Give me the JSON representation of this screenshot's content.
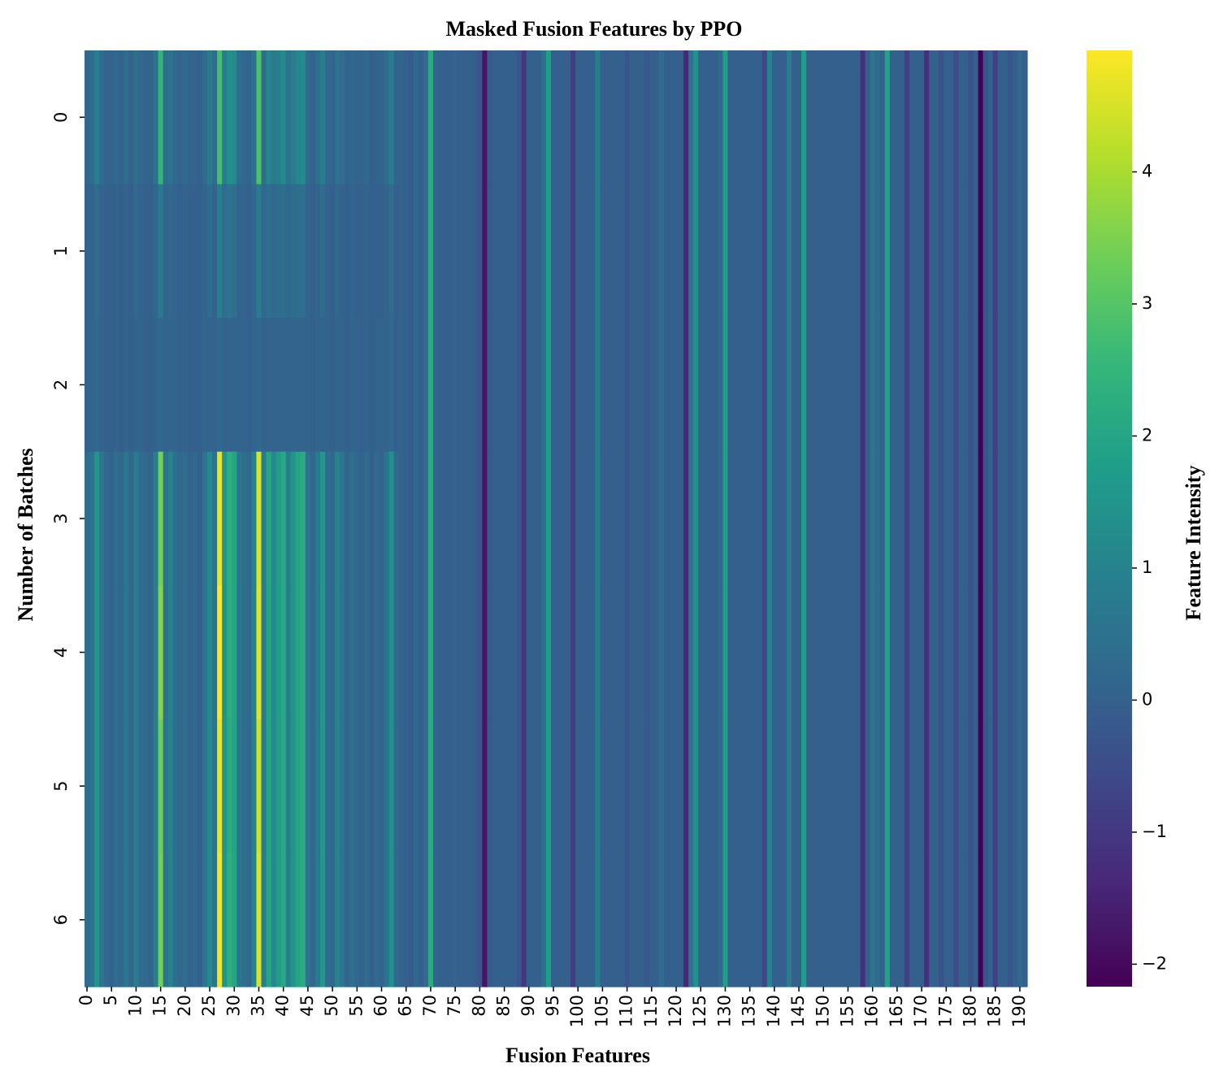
{
  "chart_data": {
    "type": "heatmap",
    "title": "Masked Fusion Features by PPO",
    "x_label": "Fusion Features",
    "y_label": "Number of Batches",
    "colorbar_label": "Feature Intensity",
    "colormap": "viridis",
    "clim": [
      -2.17,
      4.92
    ],
    "cticks": [
      {
        "value": -2,
        "label": "−2"
      },
      {
        "value": -1,
        "label": "−1"
      },
      0,
      1,
      2,
      3,
      4
    ],
    "xticks": [
      0,
      5,
      10,
      15,
      20,
      25,
      30,
      35,
      40,
      45,
      50,
      55,
      60,
      65,
      70,
      75,
      80,
      85,
      90,
      95,
      100,
      105,
      110,
      115,
      120,
      125,
      130,
      135,
      140,
      145,
      150,
      155,
      160,
      165,
      170,
      175,
      180,
      185,
      190
    ],
    "yticks": [
      0,
      1,
      2,
      3,
      4,
      5,
      6
    ],
    "z": [
      [
        0.2,
        0.3,
        0.9,
        0.3,
        0.1,
        0.1,
        0.2,
        0.1,
        0.3,
        0.1,
        0.4,
        0.2,
        0.1,
        0.1,
        0.5,
        2.5,
        0.3,
        0.6,
        0.2,
        0.1,
        0.2,
        0.1,
        0.1,
        0,
        0.3,
        0.7,
        0.3,
        2.8,
        0.8,
        1.4,
        1.2,
        0.3,
        0.2,
        0.1,
        0.5,
        2.9,
        0.4,
        1.1,
        0.7,
        0.9,
        1.2,
        0.5,
        0.8,
        1.1,
        1.2,
        0.3,
        0.1,
        0.4,
        0.9,
        0.2,
        0.1,
        0.5,
        0.3,
        0.1,
        0.2,
        0.1,
        0.1,
        0.2,
        0,
        0.1,
        0.1,
        0.3,
        0.8,
        0.1,
        0.1,
        0,
        -0.1,
        0.2,
        0,
        0.3,
        2.2,
        0.1,
        0,
        0,
        0,
        0.1,
        0,
        0,
        0,
        -0.1,
        -0.3,
        -1.8,
        -0.2,
        0,
        0,
        0,
        0,
        0,
        -0.3,
        -1,
        0,
        0,
        0,
        0.4,
        1.8,
        0,
        0,
        0,
        0,
        -0.9,
        0,
        0,
        0,
        0,
        0.9,
        0,
        0,
        0,
        0,
        0,
        -0.3,
        0,
        0,
        0,
        -0.2,
        0,
        0,
        0.3,
        0,
        0,
        0,
        0,
        -1.4,
        0.5,
        1.4,
        0,
        0,
        0,
        0,
        0.2,
        1.8,
        0,
        0,
        0,
        0,
        0,
        0,
        0,
        -0.7,
        1,
        0,
        0,
        0,
        0.8,
        0,
        0,
        1.8,
        0,
        0,
        0,
        0,
        0,
        0,
        0,
        0,
        0,
        0,
        0,
        -1.2,
        0,
        0.6,
        0.3,
        0,
        1.9,
        0,
        0,
        0,
        -0.8,
        0,
        0,
        0,
        -1.2,
        0,
        0,
        -0.4,
        0,
        0,
        -0.5,
        0,
        0,
        -0.4,
        0,
        -2.17,
        -0.3,
        0,
        -0.8,
        0,
        0,
        -0.3,
        0,
        0.2,
        0
      ],
      [
        0.1,
        0.1,
        0.3,
        0.1,
        0,
        0,
        0.1,
        0,
        0.1,
        0,
        0.2,
        0.1,
        0,
        0,
        0.2,
        0.7,
        0.1,
        0.2,
        0.1,
        0,
        0.1,
        0,
        0,
        0,
        0.1,
        0.3,
        0.1,
        0.9,
        0.3,
        0.5,
        0.4,
        0.1,
        0.1,
        0,
        0.2,
        0.8,
        0.2,
        0.4,
        0.2,
        0.3,
        0.4,
        0.2,
        0.3,
        0.4,
        0.4,
        0.1,
        0,
        0.1,
        0.3,
        0.1,
        0,
        0.2,
        0.1,
        0,
        0.1,
        0,
        0,
        0.1,
        0,
        0,
        0,
        0.1,
        0.3,
        0,
        0.1,
        0,
        -0.1,
        0.2,
        0,
        0.3,
        2.2,
        0.1,
        0,
        0,
        0,
        0.1,
        0,
        0,
        0,
        -0.1,
        -0.3,
        -1.8,
        -0.2,
        0,
        0,
        0,
        0,
        0,
        -0.3,
        -1,
        0,
        0,
        0,
        0.4,
        1.8,
        0,
        0,
        0,
        0,
        -0.9,
        0,
        0,
        0,
        0,
        0.9,
        0,
        0,
        0,
        0,
        0,
        -0.3,
        0,
        0,
        0,
        -0.2,
        0,
        0,
        0.3,
        0,
        0,
        0,
        0,
        -1.4,
        0.5,
        1.4,
        0,
        0,
        0,
        0,
        0.2,
        1.8,
        0,
        0,
        0,
        0,
        0,
        0,
        0,
        -0.7,
        1,
        0,
        0,
        0,
        0.8,
        0,
        0,
        1.8,
        0,
        0,
        0,
        0,
        0,
        0,
        0,
        0,
        0,
        0,
        0,
        -1.2,
        0,
        0.6,
        0.3,
        0,
        1.9,
        0,
        0,
        0,
        -0.8,
        0,
        0,
        0,
        -1.2,
        0,
        0,
        -0.4,
        0,
        0,
        -0.5,
        0,
        0,
        -0.4,
        0,
        -2.17,
        -0.3,
        0,
        -0.8,
        0,
        0,
        -0.3,
        0,
        0.2,
        0
      ],
      [
        0.1,
        0.1,
        0.2,
        0.1,
        0,
        0,
        0.1,
        0,
        0.1,
        0,
        0.1,
        0.1,
        0,
        0,
        0.1,
        0.2,
        0.1,
        0.1,
        0.1,
        0,
        0.1,
        0,
        0,
        0,
        0.1,
        0.1,
        0.1,
        0.2,
        0.1,
        0.1,
        0.1,
        0.1,
        0.1,
        0,
        0.1,
        0.2,
        0.1,
        0.1,
        0.1,
        0.1,
        0.1,
        0.1,
        0.1,
        0.1,
        0.1,
        0.1,
        0,
        0.1,
        0.1,
        0.1,
        0,
        0.1,
        0.1,
        0,
        0.1,
        0.1,
        0,
        0.1,
        0,
        0.1,
        0.1,
        0.1,
        0.2,
        0,
        0.1,
        0,
        -0.1,
        0.2,
        0,
        0.3,
        2.2,
        0.1,
        0,
        0,
        0,
        0.1,
        0,
        0,
        0,
        -0.1,
        -0.3,
        -1.8,
        -0.2,
        0,
        0,
        0,
        0,
        0,
        -0.3,
        -1,
        0,
        0,
        0,
        0.4,
        1.8,
        0,
        0,
        0,
        0,
        -0.9,
        0,
        0,
        0,
        0,
        0.9,
        0,
        0,
        0,
        0,
        0,
        -0.3,
        0,
        0,
        0,
        -0.2,
        0,
        0,
        0.3,
        0,
        0,
        0,
        0,
        -1.4,
        0.5,
        1.4,
        0,
        0,
        0,
        0,
        0.2,
        1.8,
        0,
        0,
        0,
        0,
        0,
        0,
        0,
        -0.7,
        1,
        0,
        0,
        0,
        0.8,
        0,
        0,
        1.8,
        0,
        0,
        0,
        0,
        0,
        0,
        0,
        0,
        0,
        0,
        0,
        -1.2,
        0,
        0.6,
        0.3,
        0,
        1.9,
        0,
        0,
        0,
        -0.8,
        0,
        0,
        0,
        -1.2,
        0,
        0,
        -0.4,
        0,
        0,
        -0.5,
        0,
        0,
        -0.4,
        0,
        -2.17,
        -0.3,
        0,
        -0.8,
        0,
        0,
        -0.3,
        0,
        0.2,
        0
      ],
      [
        0.3,
        0.5,
        1.5,
        0.6,
        0.2,
        0.1,
        0.3,
        0.2,
        0.6,
        0.2,
        0.8,
        0.3,
        0.2,
        0.1,
        0.9,
        3.4,
        0.5,
        1,
        0.4,
        0.2,
        0.3,
        0.1,
        0.2,
        0,
        0.6,
        1.2,
        0.5,
        4.7,
        1.5,
        2.3,
        2,
        0.6,
        0.4,
        0.2,
        1,
        4.5,
        0.8,
        2,
        1.2,
        1.7,
        2.1,
        0.9,
        1.5,
        2,
        2.2,
        0.5,
        0.2,
        0.7,
        1.6,
        0.3,
        0.2,
        1,
        0.6,
        0.1,
        0.4,
        0.2,
        0.1,
        0.3,
        0,
        0.2,
        0.1,
        0.5,
        1.4,
        0.2,
        0.1,
        0,
        -0.1,
        0.2,
        0,
        0.3,
        2.2,
        0.1,
        0,
        0,
        0,
        0.1,
        0,
        0,
        0,
        -0.1,
        -0.3,
        -1.8,
        -0.2,
        0,
        0,
        0,
        0,
        0,
        -0.3,
        -1,
        0,
        0,
        0,
        0.4,
        1.8,
        0,
        0,
        0,
        0,
        -0.9,
        0,
        0,
        0,
        0,
        0.9,
        0,
        0,
        0,
        0,
        0,
        -0.3,
        0,
        0,
        0,
        -0.2,
        0,
        0,
        0.3,
        0,
        0,
        0,
        0,
        -1.4,
        0.5,
        1.4,
        0,
        0,
        0,
        0,
        0.2,
        1.8,
        0,
        0,
        0,
        0,
        0,
        0,
        0,
        -0.7,
        1,
        0,
        0,
        0,
        0.8,
        0,
        0,
        1.8,
        0,
        0,
        0,
        0,
        0,
        0,
        0,
        0,
        0,
        0,
        0,
        -1.2,
        0,
        0.6,
        0.3,
        0,
        1.9,
        0,
        0,
        0,
        -0.8,
        0,
        0,
        0,
        -1.2,
        0,
        0,
        -0.4,
        0,
        0,
        -0.5,
        0,
        0,
        -0.4,
        0,
        -2.17,
        -0.3,
        0,
        -0.8,
        0,
        0,
        -0.3,
        0,
        0.2,
        0
      ],
      [
        0.3,
        0.5,
        1.5,
        0.6,
        0.2,
        0.1,
        0.3,
        0.2,
        0.6,
        0.2,
        0.8,
        0.3,
        0.2,
        0.1,
        0.9,
        3.6,
        0.5,
        1,
        0.4,
        0.2,
        0.3,
        0.1,
        0.2,
        0,
        0.6,
        1.2,
        0.5,
        4.9,
        1.5,
        2.3,
        2,
        0.6,
        0.4,
        0.2,
        1,
        4.6,
        0.8,
        2,
        1.2,
        1.7,
        2.1,
        0.9,
        1.5,
        2,
        2.2,
        0.5,
        0.2,
        0.7,
        1.6,
        0.3,
        0.2,
        1,
        0.6,
        0.1,
        0.4,
        0.2,
        0.1,
        0.3,
        0,
        0.2,
        0.1,
        0.5,
        1.4,
        0.2,
        0.1,
        0,
        -0.1,
        0.2,
        0,
        0.3,
        2.2,
        0.1,
        0,
        0,
        0,
        0.1,
        0,
        0,
        0,
        -0.1,
        -0.3,
        -1.8,
        -0.2,
        0,
        0,
        0,
        0,
        0,
        -0.3,
        -1,
        0,
        0,
        0,
        0.4,
        1.8,
        0,
        0,
        0,
        0,
        -0.9,
        0,
        0,
        0,
        0,
        0.9,
        0,
        0,
        0,
        0,
        0,
        -0.3,
        0,
        0,
        0,
        -0.2,
        0,
        0,
        0.3,
        0,
        0,
        0,
        0,
        -1.4,
        0.5,
        1.4,
        0,
        0,
        0,
        0,
        0.2,
        1.8,
        0,
        0,
        0,
        0,
        0,
        0,
        0,
        -0.7,
        1,
        0,
        0,
        0,
        0.8,
        0,
        0,
        1.8,
        0,
        0,
        0,
        0,
        0,
        0,
        0,
        0,
        0,
        0,
        0,
        -1.2,
        0,
        0.6,
        0.3,
        0,
        1.9,
        0,
        0,
        0,
        -0.8,
        0,
        0,
        0,
        -1.2,
        0,
        0,
        -0.4,
        0,
        0,
        -0.5,
        0,
        0,
        -0.4,
        0,
        -2.17,
        -0.3,
        0,
        -0.8,
        0,
        0,
        -0.3,
        0,
        0.2,
        0
      ],
      [
        0.3,
        0.5,
        1.5,
        0.6,
        0.2,
        0.1,
        0.3,
        0.2,
        0.6,
        0.2,
        0.8,
        0.3,
        0.2,
        0.1,
        0.9,
        3.3,
        0.5,
        1,
        0.4,
        0.2,
        0.3,
        0.1,
        0.2,
        0,
        0.6,
        1.2,
        0.5,
        4.7,
        1.5,
        2.2,
        2,
        0.6,
        0.4,
        0.2,
        1,
        4.4,
        0.8,
        2,
        1.2,
        1.7,
        2.1,
        0.9,
        1.5,
        2,
        2.2,
        0.5,
        0.2,
        0.7,
        1.6,
        0.3,
        0.2,
        1,
        0.6,
        0.1,
        0.4,
        0.2,
        0.1,
        0.3,
        0,
        0.2,
        0.1,
        0.5,
        1.4,
        0.2,
        0.1,
        0,
        -0.1,
        0.2,
        0,
        0.3,
        2.2,
        0.1,
        0,
        0,
        0,
        0.1,
        0,
        0,
        0,
        -0.1,
        -0.3,
        -1.8,
        -0.2,
        0,
        0,
        0,
        0,
        0,
        -0.3,
        -1,
        0,
        0,
        0,
        0.4,
        1.8,
        0,
        0,
        0,
        0,
        -0.9,
        0,
        0,
        0,
        0,
        0.9,
        0,
        0,
        0,
        0,
        0,
        -0.3,
        0,
        0,
        0,
        -0.2,
        0,
        0,
        0.3,
        0,
        0,
        0,
        0,
        -1.4,
        0.5,
        1.4,
        0,
        0,
        0,
        0,
        0.2,
        1.8,
        0,
        0,
        0,
        0,
        0,
        0,
        0,
        -0.7,
        1,
        0,
        0,
        0,
        0.8,
        0,
        0,
        1.8,
        0,
        0,
        0,
        0,
        0,
        0,
        0,
        0,
        0,
        0,
        0,
        -1.2,
        0,
        0.6,
        0.3,
        0,
        1.9,
        0,
        0,
        0,
        -0.8,
        0,
        0,
        0,
        -1.2,
        0,
        0,
        -0.4,
        0,
        0,
        -0.5,
        0,
        0,
        -0.4,
        0,
        -2.17,
        -0.3,
        0,
        -0.8,
        0,
        0,
        -0.3,
        0,
        0.2,
        0
      ],
      [
        0.3,
        0.5,
        1.5,
        0.6,
        0.2,
        0.1,
        0.3,
        0.2,
        0.6,
        0.2,
        0.8,
        0.3,
        0.2,
        0.1,
        0.9,
        3.4,
        0.5,
        1,
        0.4,
        0.2,
        0.3,
        0.1,
        0.2,
        0,
        0.6,
        1.2,
        0.5,
        4.8,
        1.5,
        2.3,
        2,
        0.6,
        0.4,
        0.2,
        1,
        4.5,
        0.8,
        2,
        1.2,
        1.7,
        2.1,
        0.9,
        1.5,
        2,
        2.2,
        0.5,
        0.2,
        0.7,
        1.6,
        0.3,
        0.2,
        1,
        0.6,
        0.1,
        0.4,
        0.2,
        0.1,
        0.3,
        0,
        0.2,
        0.1,
        0.5,
        1.4,
        0.2,
        0.1,
        0,
        -0.1,
        0.2,
        0,
        0.3,
        2.2,
        0.1,
        0,
        0,
        0,
        0.1,
        0,
        0,
        0,
        -0.1,
        -0.3,
        -1.8,
        -0.2,
        0,
        0,
        0,
        0,
        0,
        -0.3,
        -1,
        0,
        0,
        0,
        0.4,
        1.8,
        0,
        0,
        0,
        0,
        -0.9,
        0,
        0,
        0,
        0,
        0.9,
        0,
        0,
        0,
        0,
        0,
        -0.3,
        0,
        0,
        0,
        -0.2,
        0,
        0,
        0.3,
        0,
        0,
        0,
        0,
        -1.4,
        0.5,
        1.4,
        0,
        0,
        0,
        0,
        0.2,
        1.8,
        0,
        0,
        0,
        0,
        0,
        0,
        0,
        -0.7,
        1,
        0,
        0,
        0,
        0.8,
        0,
        0,
        1.8,
        0,
        0,
        0,
        0,
        0,
        0,
        0,
        0,
        0,
        0,
        0,
        -1.2,
        0,
        0.6,
        0.3,
        0,
        1.9,
        0,
        0,
        0,
        -0.8,
        0,
        0,
        0,
        -1.2,
        0,
        0,
        -0.4,
        0,
        0,
        -0.5,
        0,
        0,
        -0.4,
        0,
        -2.17,
        -0.3,
        0,
        -0.8,
        0,
        0,
        -0.3,
        0,
        0.2,
        0
      ]
    ]
  }
}
